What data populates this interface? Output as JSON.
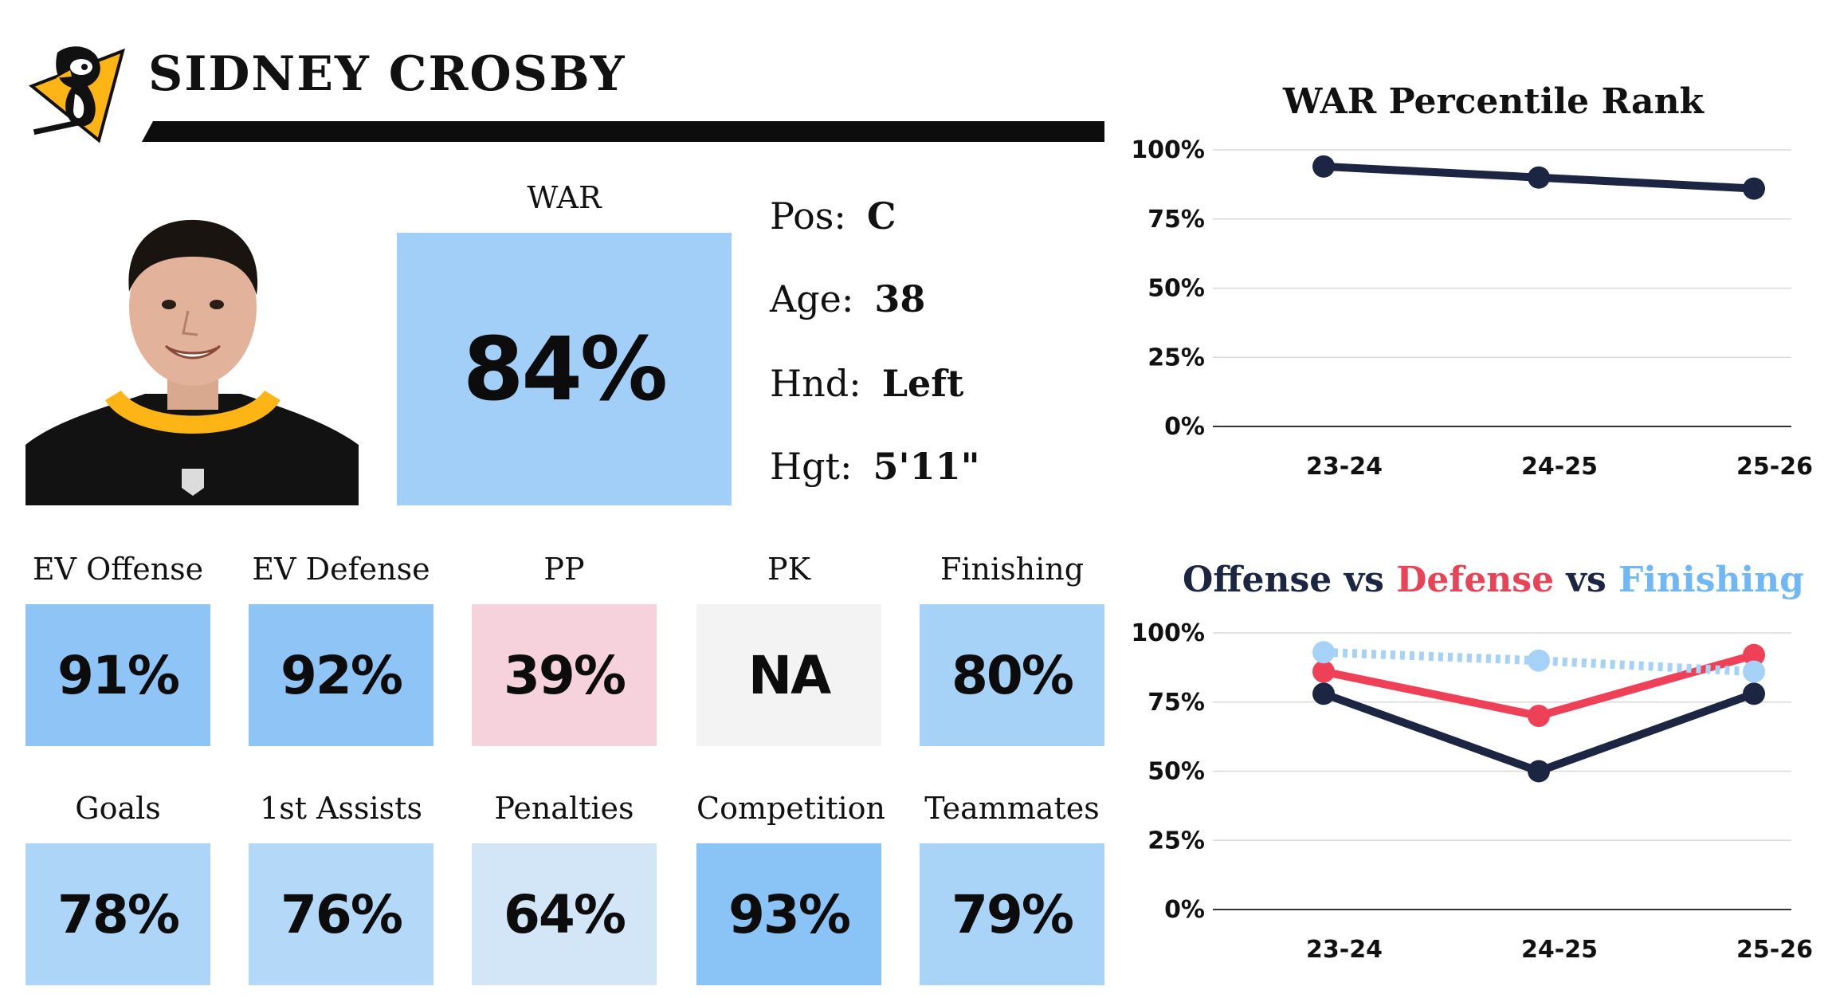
{
  "player": {
    "name": "SIDNEY CROSBY",
    "team_logo": "penguins-logo",
    "war_label": "WAR",
    "war_value": "84%",
    "war_color": "#a2cff7",
    "info": [
      {
        "key": "Pos:",
        "value": "C"
      },
      {
        "key": "Age:",
        "value": "38"
      },
      {
        "key": "Hnd:",
        "value": "Left"
      },
      {
        "key": "Hgt:",
        "value": "5'11\""
      }
    ]
  },
  "tiles": [
    {
      "label": "EV Offense",
      "value": "91%",
      "color": "#8ec5f6"
    },
    {
      "label": "EV Defense",
      "value": "92%",
      "color": "#8ec5f6"
    },
    {
      "label": "PP",
      "value": "39%",
      "color": "#f6d3dc"
    },
    {
      "label": "PK",
      "value": "NA",
      "color": "#f3f3f3"
    },
    {
      "label": "Finishing",
      "value": "80%",
      "color": "#a6d2f7"
    },
    {
      "label": "Goals",
      "value": "78%",
      "color": "#acd5f7"
    },
    {
      "label": "1st Assists",
      "value": "76%",
      "color": "#b3d8f8"
    },
    {
      "label": "Penalties",
      "value": "64%",
      "color": "#d3e6f8"
    },
    {
      "label": "Competition",
      "value": "93%",
      "color": "#8ac3f6"
    },
    {
      "label": "Teammates",
      "value": "79%",
      "color": "#a9d3f7"
    }
  ],
  "chart_data": [
    {
      "type": "line",
      "title": "WAR Percentile Rank",
      "x": [
        "23-24",
        "24-25",
        "25-26"
      ],
      "ylim": [
        0,
        100
      ],
      "yticks": [
        "0%",
        "25%",
        "50%",
        "75%",
        "100%"
      ],
      "grid": true,
      "series": [
        {
          "values": [
            94,
            90,
            86
          ],
          "color": "#1c2541",
          "style": "solid"
        }
      ]
    },
    {
      "type": "line",
      "title_parts": [
        {
          "text": "Offense",
          "color": "#1c2541"
        },
        {
          "text": " vs ",
          "color": "#1c2541"
        },
        {
          "text": "Defense",
          "color": "#e84357"
        },
        {
          "text": " vs ",
          "color": "#1c2541"
        },
        {
          "text": "Finishing",
          "color": "#6fb8f5"
        }
      ],
      "x": [
        "23-24",
        "24-25",
        "25-26"
      ],
      "ylim": [
        0,
        100
      ],
      "yticks": [
        "0%",
        "25%",
        "50%",
        "75%",
        "100%"
      ],
      "grid": true,
      "series": [
        {
          "name": "Offense",
          "values": [
            78,
            50,
            78
          ],
          "color": "#1c2541",
          "style": "solid"
        },
        {
          "name": "Defense",
          "values": [
            86,
            70,
            92
          ],
          "color": "#ee4056",
          "style": "solid"
        },
        {
          "name": "Finishing",
          "values": [
            93,
            90,
            86
          ],
          "color": "#a6d2f7",
          "style": "dotted"
        }
      ]
    }
  ]
}
